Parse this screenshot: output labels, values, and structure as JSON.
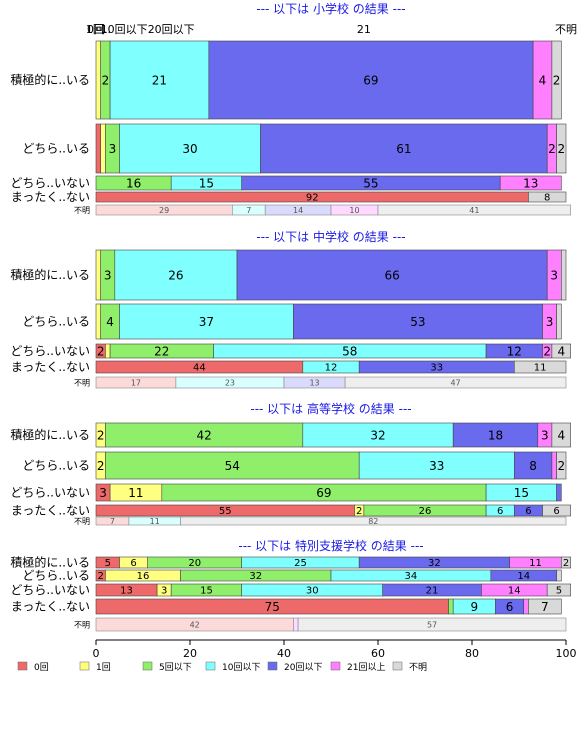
{
  "chart_data": {
    "type": "bar",
    "orientation": "horizontal",
    "stacked": true,
    "xlim": [
      0,
      100
    ],
    "x_ticks": [
      0,
      20,
      40,
      60,
      80,
      100
    ],
    "top_labels": {
      "categories_pos": [
        0,
        0.5,
        6,
        16,
        57,
        100
      ],
      "labels": [
        "0回",
        "1回..",
        "10回以下",
        "20回以下",
        "21",
        "不明"
      ]
    },
    "legend_position": "bottom",
    "legend": [
      {
        "label": "0回",
        "color": "#EE6A6A"
      },
      {
        "label": "1回",
        "color": "#FFFF80"
      },
      {
        "label": "5回以下",
        "color": "#8FEE6A"
      },
      {
        "label": "10回以下",
        "color": "#80FFFF"
      },
      {
        "label": "20回以下",
        "color": "#6A6AEE"
      },
      {
        "label": "21回以上",
        "color": "#FF80FF"
      },
      {
        "label": "不明",
        "color": "#D9D9D9"
      }
    ],
    "panels": [
      {
        "title": "--- 以下は 小学校 の結果 ---",
        "rows": [
          {
            "label": "積極的に..いる",
            "values": [
              0,
              1,
              2,
              21,
              69,
              4,
              2
            ]
          },
          {
            "label": "どちら..いる",
            "values": [
              1,
              1,
              3,
              30,
              61,
              2,
              2
            ]
          },
          {
            "label": "どちら..いない",
            "values": [
              0,
              0,
              16,
              15,
              55,
              13,
              0
            ]
          },
          {
            "label": "まったく..ない",
            "values": [
              92,
              0,
              0,
              0,
              0,
              0,
              8
            ]
          },
          {
            "label": "不明",
            "values": [
              29,
              0,
              0,
              7,
              14,
              10,
              41
            ],
            "faded": true
          }
        ]
      },
      {
        "title": "--- 以下は 中学校 の結果 ---",
        "rows": [
          {
            "label": "積極的に..いる",
            "values": [
              0,
              1,
              3,
              26,
              66,
              3,
              1
            ]
          },
          {
            "label": "どちら..いる",
            "values": [
              0,
              1,
              4,
              37,
              53,
              3,
              1
            ]
          },
          {
            "label": "どちら..いない",
            "values": [
              2,
              1,
              22,
              58,
              12,
              2,
              4
            ]
          },
          {
            "label": "まったく..ない",
            "values": [
              44,
              0,
              0,
              12,
              33,
              0,
              11
            ]
          },
          {
            "label": "不明",
            "values": [
              17,
              0,
              0,
              23,
              13,
              0,
              47
            ],
            "faded": true
          }
        ]
      },
      {
        "title": "--- 以下は 高等学校 の結果 ---",
        "rows": [
          {
            "label": "積極的に..いる",
            "values": [
              0,
              2,
              42,
              32,
              18,
              3,
              4
            ]
          },
          {
            "label": "どちら..いる",
            "values": [
              0,
              2,
              54,
              33,
              8,
              1,
              2
            ]
          },
          {
            "label": "どちら..いない",
            "values": [
              3,
              11,
              69,
              15,
              1,
              0,
              0
            ]
          },
          {
            "label": "まったく..ない",
            "values": [
              55,
              2,
              26,
              6,
              6,
              0,
              6
            ]
          },
          {
            "label": "不明",
            "values": [
              7,
              0,
              0,
              11,
              0,
              0,
              82
            ],
            "faded": true
          }
        ]
      },
      {
        "title": "--- 以下は 特別支援学校 の結果 ---",
        "rows": [
          {
            "label": "積極的に..いる",
            "values": [
              5,
              6,
              20,
              25,
              32,
              11,
              2
            ]
          },
          {
            "label": "どちら..いる",
            "values": [
              2,
              16,
              32,
              34,
              14,
              0,
              1
            ]
          },
          {
            "label": "どちら..いない",
            "values": [
              13,
              3,
              15,
              30,
              21,
              14,
              5
            ]
          },
          {
            "label": "まったく..ない",
            "values": [
              75,
              0,
              1,
              9,
              6,
              1,
              7
            ]
          },
          {
            "label": "不明",
            "values": [
              42,
              0,
              0,
              0,
              0,
              1,
              57
            ],
            "faded": true
          }
        ]
      }
    ]
  }
}
